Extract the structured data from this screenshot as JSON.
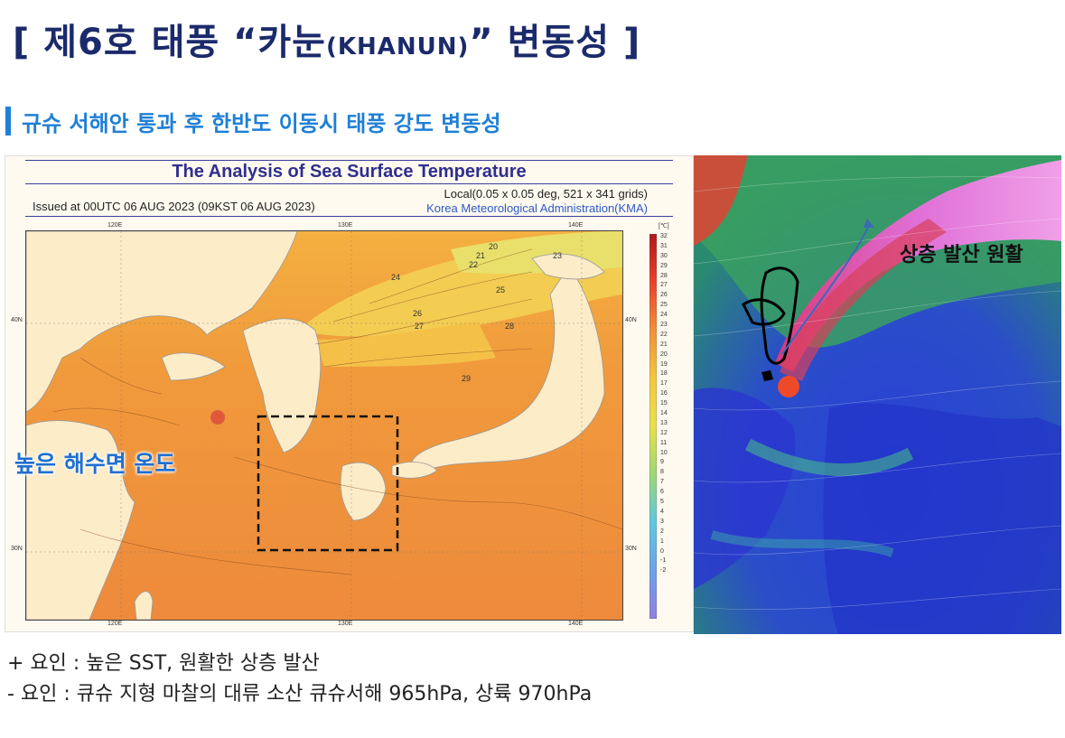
{
  "slide": {
    "title_main": "[ 제6호 태풍 “카눈",
    "title_paren": "(KHANUN)",
    "title_tail": "” 변동성 ]",
    "subtitle": "규슈 서해안 통과 후 한반도 이동시 태풍 강도 변동성"
  },
  "sst_figure": {
    "title": "The Analysis of Sea Surface Temperature",
    "issued": "Issued at   00UTC 06 AUG 2023 (09KST 06 AUG 2023)",
    "grid": "Local(0.05 x 0.05 deg, 521 x 341 grids)",
    "agency": "Korea Meteorological Administration(KMA)",
    "lon_ticks": [
      "120E",
      "130E",
      "140E"
    ],
    "lat_ticks": [
      "40N",
      "30N"
    ],
    "colorbar_unit": "[℃]",
    "colorbar_labels": [
      "32",
      "31",
      "30",
      "29",
      "28",
      "27",
      "26",
      "25",
      "24",
      "23",
      "22",
      "21",
      "20",
      "19",
      "18",
      "17",
      "16",
      "15",
      "14",
      "13",
      "12",
      "11",
      "10",
      "9",
      "8",
      "7",
      "6",
      "5",
      "4",
      "3",
      "2",
      "1",
      "0",
      "-1",
      "-2"
    ],
    "contour_labels": [
      "20",
      "21",
      "22",
      "23",
      "24",
      "25",
      "26",
      "27",
      "28",
      "29"
    ],
    "callout": "높은 해수면 온도"
  },
  "wind_figure": {
    "label": "상층 발산 원활"
  },
  "notes": {
    "plus": "+ 요인 : 높은 SST, 원활한 상층 발산",
    "minus": "- 요인 : 큐슈 지형 마찰의 대류 소산    큐슈서해 965hPa, 상륙 970hPa"
  }
}
